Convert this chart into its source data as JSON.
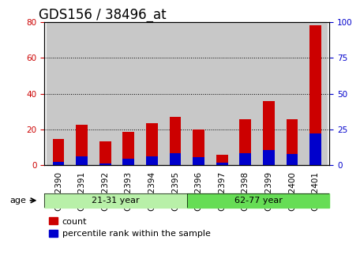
{
  "title": "GDS156 / 38496_at",
  "samples": [
    "GSM2390",
    "GSM2391",
    "GSM2392",
    "GSM2393",
    "GSM2394",
    "GSM2395",
    "GSM2396",
    "GSM2397",
    "GSM2398",
    "GSM2399",
    "GSM2400",
    "GSM2401"
  ],
  "count_values": [
    14.5,
    22.5,
    13.5,
    18.5,
    23.5,
    27.0,
    20.0,
    6.0,
    25.5,
    36.0,
    25.5,
    78.0
  ],
  "percentile_values": [
    2.5,
    6.5,
    1.5,
    4.5,
    6.0,
    8.5,
    5.5,
    2.0,
    8.5,
    10.5,
    8.0,
    22.0
  ],
  "count_color": "#cc0000",
  "percentile_color": "#0000cc",
  "ylim_left": [
    0,
    80
  ],
  "ylim_right": [
    0,
    100
  ],
  "yticks_left": [
    0,
    20,
    40,
    60,
    80
  ],
  "yticks_right": [
    0,
    25,
    50,
    75,
    100
  ],
  "age_groups": [
    {
      "label": "21-31 year",
      "start": 0,
      "end": 6,
      "color": "#b8f0a8"
    },
    {
      "label": "62-77 year",
      "start": 6,
      "end": 12,
      "color": "#66dd55"
    }
  ],
  "age_label": "age",
  "legend_items": [
    {
      "label": "count",
      "color": "#cc0000"
    },
    {
      "label": "percentile rank within the sample",
      "color": "#0000cc"
    }
  ],
  "bar_width": 0.5,
  "sample_bg_color": "#c8c8c8",
  "right_axis_color": "#0000cc",
  "left_axis_color": "#cc0000",
  "title_fontsize": 12,
  "tick_fontsize": 7.5,
  "label_fontsize": 8
}
